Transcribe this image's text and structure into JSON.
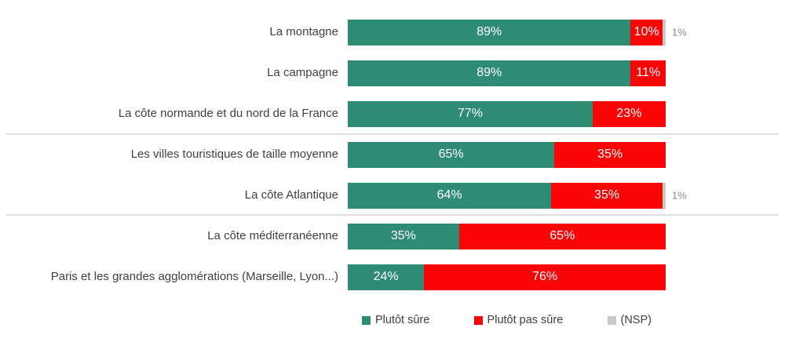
{
  "chart_data": {
    "type": "bar",
    "orientation": "horizontal",
    "stacked": true,
    "title": "",
    "xlabel": "",
    "ylabel": "",
    "xlim": [
      0,
      100
    ],
    "grid": false,
    "legend_position": "bottom",
    "categories": [
      "La montagne",
      "La campagne",
      "La côte normande et du nord de la France",
      "Les villes touristiques de taille moyenne",
      "La côte Atlantique",
      "La côte méditerranéenne",
      "Paris et les grandes agglomérations (Marseille, Lyon...)"
    ],
    "series": [
      {
        "name": "Plutôt sûre",
        "color": "#2E8C74",
        "values": [
          89,
          89,
          77,
          65,
          64,
          35,
          24
        ]
      },
      {
        "name": "Plutôt pas sûre",
        "color": "#FA0505",
        "values": [
          10,
          11,
          23,
          35,
          35,
          65,
          76
        ]
      },
      {
        "name": "(NSP)",
        "color": "#C8C8C8",
        "values": [
          1,
          0,
          0,
          0,
          1,
          0,
          0
        ]
      }
    ],
    "annotations": "NSP values of 1% shown as gray text to the right of bars; separator lines after rows 3 and 5"
  },
  "colors": {
    "sure": "#2E8C74",
    "pas_sure": "#FA0505",
    "nsp": "#C8C8C8"
  },
  "rows": [
    {
      "label": "La montagne",
      "sure": 89,
      "sure_label": "89%",
      "pas": 10,
      "pas_label": "10%",
      "nsp": 1,
      "nsp_label": "1%"
    },
    {
      "label": "La campagne",
      "sure": 89,
      "sure_label": "89%",
      "pas": 11,
      "pas_label": "11%",
      "nsp": 0,
      "nsp_label": ""
    },
    {
      "label": "La côte normande et du nord de la France",
      "sure": 77,
      "sure_label": "77%",
      "pas": 23,
      "pas_label": "23%",
      "nsp": 0,
      "nsp_label": ""
    },
    {
      "label": "Les villes touristiques de taille moyenne",
      "sure": 65,
      "sure_label": "65%",
      "pas": 35,
      "pas_label": "35%",
      "nsp": 0,
      "nsp_label": ""
    },
    {
      "label": "La côte Atlantique",
      "sure": 64,
      "sure_label": "64%",
      "pas": 35,
      "pas_label": "35%",
      "nsp": 1,
      "nsp_label": "1%"
    },
    {
      "label": "La côte méditerranéenne",
      "sure": 35,
      "sure_label": "35%",
      "pas": 65,
      "pas_label": "65%",
      "nsp": 0,
      "nsp_label": ""
    },
    {
      "label": "Paris et les grandes agglomérations (Marseille, Lyon...)",
      "sure": 24,
      "sure_label": "24%",
      "pas": 76,
      "pas_label": "76%",
      "nsp": 0,
      "nsp_label": ""
    }
  ],
  "legend": {
    "items": [
      {
        "label": "Plutôt sûre",
        "color": "#2E8C74"
      },
      {
        "label": "Plutôt pas sûre",
        "color": "#FA0505"
      },
      {
        "label": "(NSP)",
        "color": "#C8C8C8"
      }
    ]
  }
}
